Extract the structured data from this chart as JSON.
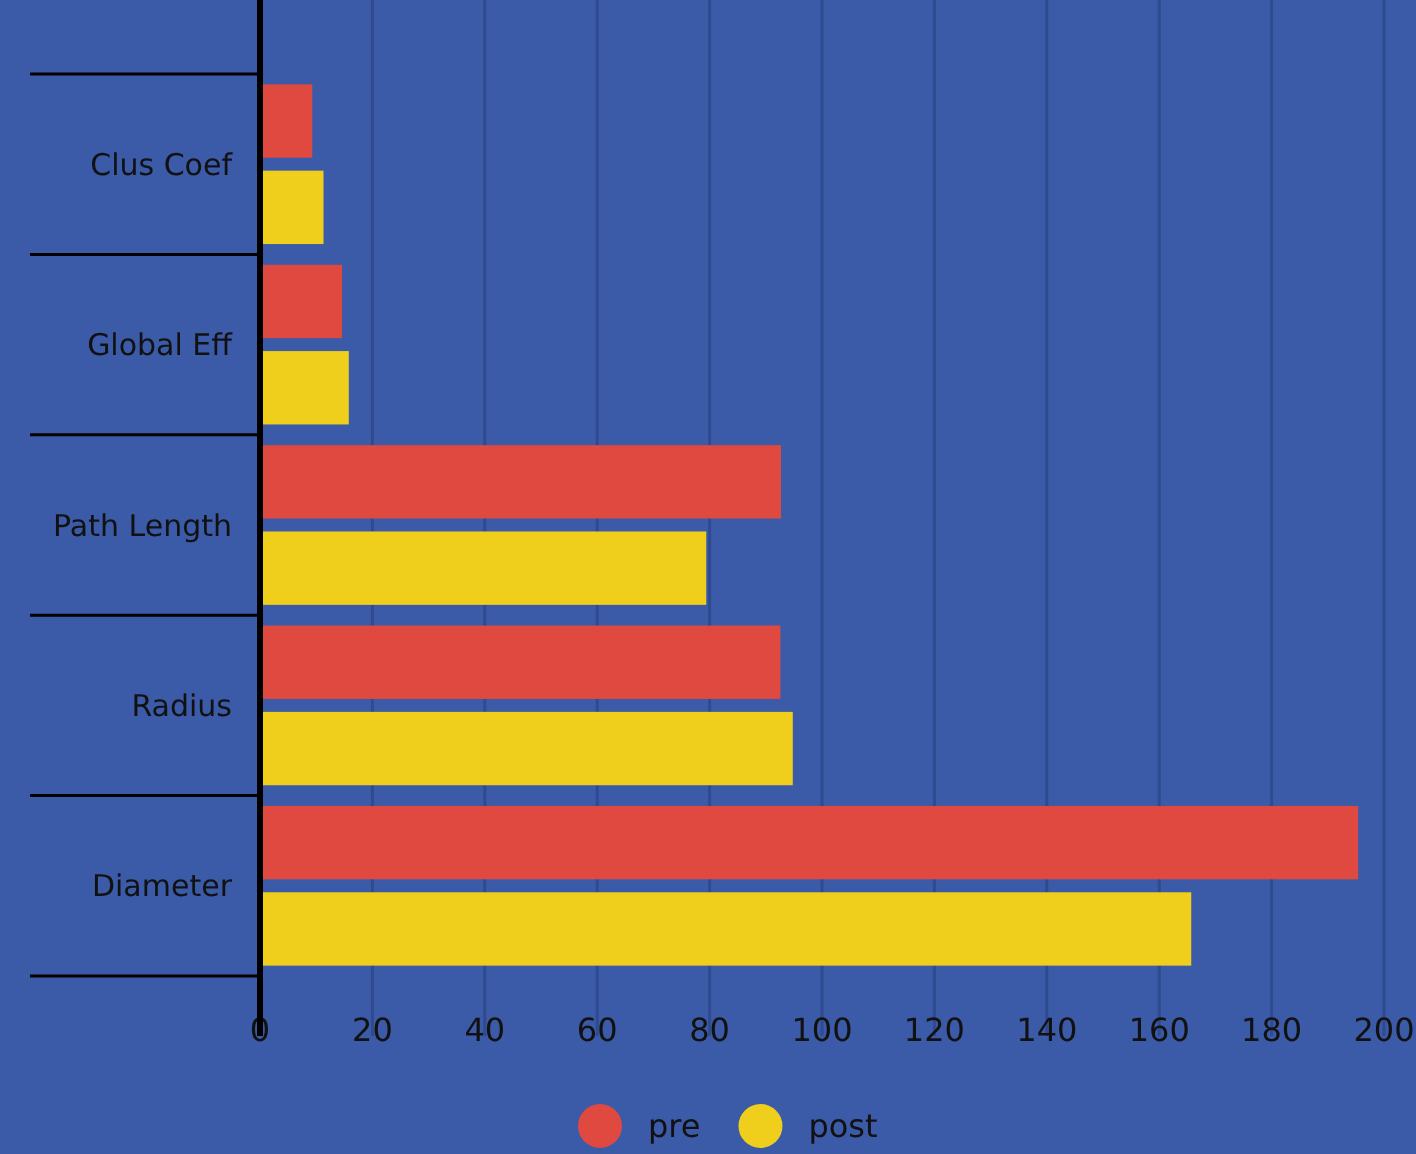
{
  "chart_data": {
    "type": "bar",
    "orientation": "horizontal",
    "categories": [
      "Clus Coef",
      "Global Eff",
      "Path Length",
      "Radius",
      "Diameter"
    ],
    "series": [
      {
        "name": "pre",
        "color": "#e0493f",
        "values": [
          9.3,
          14.6,
          92.7,
          92.6,
          195.4
        ]
      },
      {
        "name": "post",
        "color": "#f0cf1c",
        "values": [
          11.3,
          15.8,
          79.4,
          94.8,
          165.7
        ]
      }
    ],
    "xlim": [
      0,
      200
    ],
    "xticks": [
      0,
      20,
      40,
      60,
      80,
      100,
      120,
      140,
      160,
      180,
      200
    ],
    "grid": "x",
    "legend": "bottom"
  }
}
